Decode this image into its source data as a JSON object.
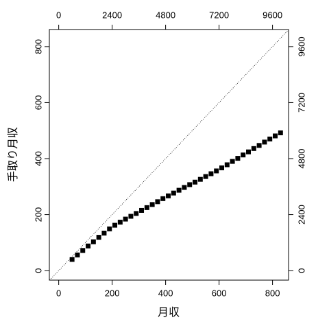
{
  "chart_data": {
    "type": "scatter",
    "xlabel": "月収",
    "ylabel": "手取り月収",
    "xlim": [
      -35,
      860
    ],
    "ylim": [
      -34,
      861
    ],
    "xticks": [
      0,
      200,
      400,
      600,
      800
    ],
    "yticks": [
      0,
      200,
      400,
      600,
      800
    ],
    "x2lim": [
      -420,
      10320
    ],
    "x2ticks": [
      0,
      2400,
      4800,
      7200,
      9600
    ],
    "y2lim": [
      -408,
      10332
    ],
    "y2ticks": [
      0,
      2400,
      4800,
      7200,
      9600
    ],
    "diagonal": true,
    "color": "#000000",
    "series": [
      {
        "x": [
          50,
          70,
          90,
          110,
          130,
          150,
          170,
          190,
          210,
          230,
          250,
          270,
          290,
          310,
          330,
          350,
          370,
          390,
          410,
          430,
          450,
          470,
          490,
          510,
          530,
          550,
          570,
          590,
          610,
          630,
          650,
          670,
          690,
          710,
          730,
          750,
          770,
          790,
          810,
          830
        ],
        "values": [
          40,
          56,
          72,
          88,
          103,
          119,
          134,
          149,
          162,
          173,
          184,
          194,
          204,
          215,
          225,
          236,
          246,
          257,
          267,
          277,
          287,
          297,
          307,
          316,
          326,
          336,
          346,
          356,
          367,
          378,
          390,
          401,
          413,
          424,
          436,
          447,
          459,
          470,
          481,
          492
        ]
      }
    ]
  }
}
